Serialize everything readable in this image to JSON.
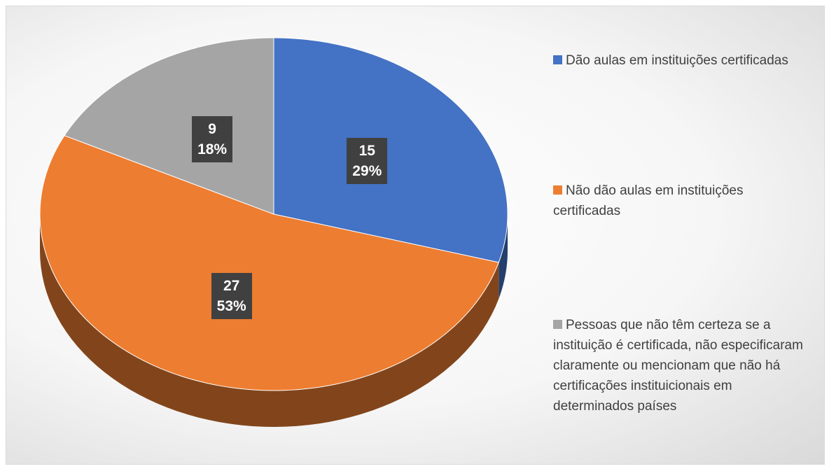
{
  "chart_data": {
    "type": "pie",
    "categories": [
      "Dão aulas em instituições certificadas",
      "Não dão aulas em instituições certificadas",
      "Pessoas que não têm certeza se a instituição é certificada, não especificaram claramente ou mencionam que não há certificações instituicionais em determinados países"
    ],
    "values": [
      15,
      27,
      9
    ],
    "percent_labels": [
      "29%",
      "53%",
      "18%"
    ],
    "colors": [
      "#4472c4",
      "#ed7d31",
      "#a5a5a5"
    ],
    "legend": "right"
  }
}
